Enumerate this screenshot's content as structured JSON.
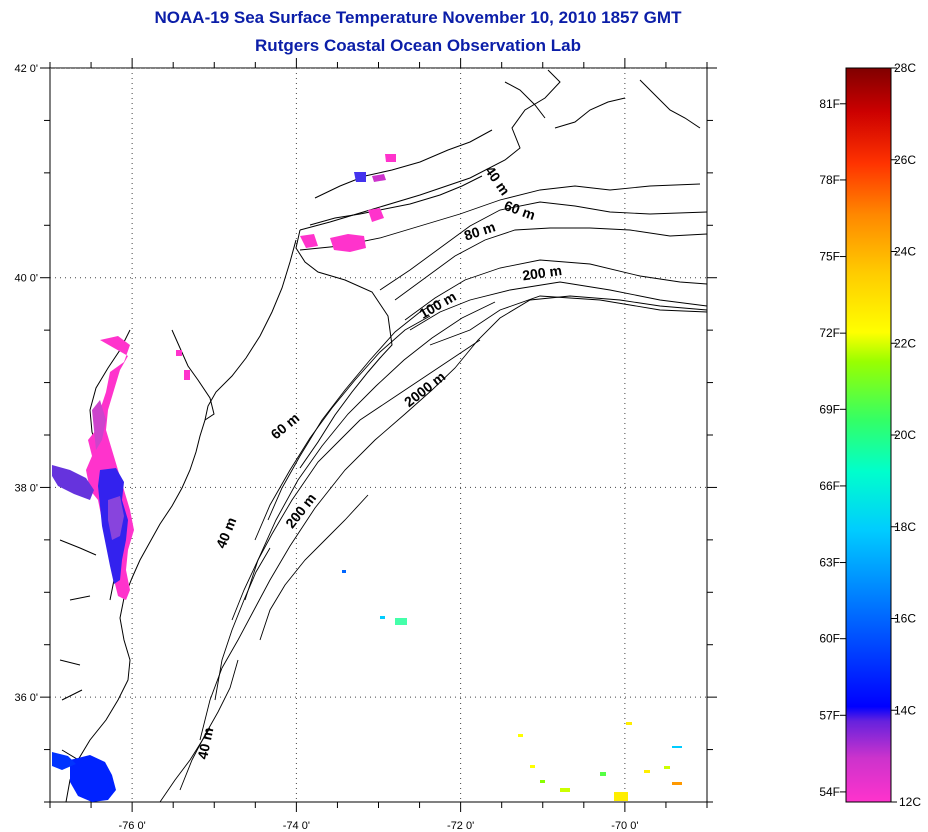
{
  "header": {
    "title": "NOAA-19 Sea Surface Temperature November 10, 2010 1857 GMT",
    "subtitle": "Rutgers Coastal Ocean Observation Lab"
  },
  "map": {
    "lat_range": [
      35,
      42
    ],
    "lon_range": [
      -77,
      -69
    ],
    "lat_ticks": [
      {
        "value": 42,
        "label": "42 0'"
      },
      {
        "value": 40,
        "label": "40 0'"
      },
      {
        "value": 38,
        "label": "38 0'"
      },
      {
        "value": 36,
        "label": "36 0'"
      }
    ],
    "lon_ticks": [
      {
        "value": -76,
        "label": "-76 0'"
      },
      {
        "value": -74,
        "label": "-74 0'"
      },
      {
        "value": -72,
        "label": "-72 0'"
      },
      {
        "value": -70,
        "label": "-70 0'"
      }
    ],
    "grid": "dotted",
    "contour_labels": [
      {
        "text": "40 m",
        "lon": -71.6,
        "lat": 40.9,
        "angle": 55
      },
      {
        "text": "60 m",
        "lon": -71.3,
        "lat": 40.6,
        "angle": 20
      },
      {
        "text": "80 m",
        "lon": -71.75,
        "lat": 40.4,
        "angle": -18
      },
      {
        "text": "200 m",
        "lon": -71.0,
        "lat": 40.0,
        "angle": -8
      },
      {
        "text": "100 m",
        "lon": -72.25,
        "lat": 39.7,
        "angle": -30
      },
      {
        "text": "2000 m",
        "lon": -72.4,
        "lat": 38.9,
        "angle": -38
      },
      {
        "text": "60 m",
        "lon": -74.1,
        "lat": 38.55,
        "angle": -40
      },
      {
        "text": "200 m",
        "lon": -73.9,
        "lat": 37.75,
        "angle": -52
      },
      {
        "text": "40 m",
        "lon": -74.8,
        "lat": 37.55,
        "angle": -68
      },
      {
        "text": "40 m",
        "lon": -75.05,
        "lat": 35.55,
        "angle": -78
      }
    ]
  },
  "colorbar": {
    "celsius_range": [
      12,
      28
    ],
    "celsius_labels": [
      "28C",
      "26C",
      "24C",
      "22C",
      "20C",
      "18C",
      "16C",
      "14C",
      "12C"
    ],
    "fahrenheit_labels": [
      {
        "label": "81F",
        "c": 27.22
      },
      {
        "label": "78F",
        "c": 25.56
      },
      {
        "label": "75F",
        "c": 23.89
      },
      {
        "label": "72F",
        "c": 22.22
      },
      {
        "label": "69F",
        "c": 20.56
      },
      {
        "label": "66F",
        "c": 18.89
      },
      {
        "label": "63F",
        "c": 17.22
      },
      {
        "label": "60F",
        "c": 15.56
      },
      {
        "label": "57F",
        "c": 13.89
      },
      {
        "label": "54F",
        "c": 12.22
      }
    ],
    "colors": [
      "#ff33cc",
      "#9933cc",
      "#3322cc",
      "#0000ff",
      "#0066ff",
      "#00ccff",
      "#00ffcc",
      "#33ff66",
      "#99ff00",
      "#ffff00",
      "#ffcc00",
      "#ff8800",
      "#ff3300",
      "#cc0000",
      "#800000"
    ]
  }
}
